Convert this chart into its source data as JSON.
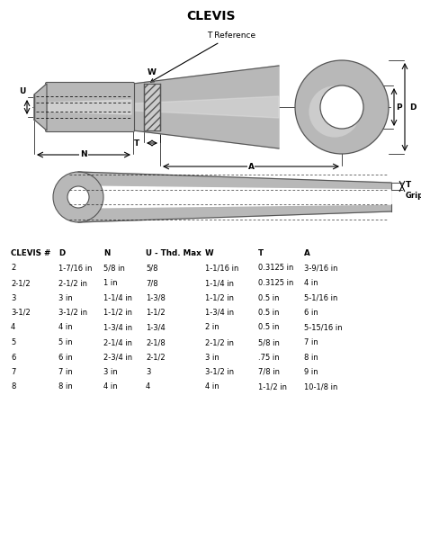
{
  "title": "CLEVIS",
  "bg_color": "#ffffff",
  "title_fontsize": 10,
  "table_header": [
    "CLEVIS #",
    "D",
    "N",
    "U - Thd. Max",
    "W",
    "T",
    "A"
  ],
  "table_rows": [
    [
      "2",
      "1-7/16 in",
      "5/8 in",
      "5/8",
      "1-1/16 in",
      "0.3125 in",
      "3-9/16 in"
    ],
    [
      "2-1/2",
      "2-1/2 in",
      "1 in",
      "7/8",
      "1-1/4 in",
      "0.3125 in",
      "4 in"
    ],
    [
      "3",
      "3 in",
      "1-1/4 in",
      "1-3/8",
      "1-1/2 in",
      "0.5 in",
      "5-1/16 in"
    ],
    [
      "3-1/2",
      "3-1/2 in",
      "1-1/2 in",
      "1-1/2",
      "1-3/4 in",
      "0.5 in",
      "6 in"
    ],
    [
      "4",
      "4 in",
      "1-3/4 in",
      "1-3/4",
      "2 in",
      "0.5 in",
      "5-15/16 in"
    ],
    [
      "5",
      "5 in",
      "2-1/4 in",
      "2-1/8",
      "2-1/2 in",
      "5/8 in",
      "7 in"
    ],
    [
      "6",
      "6 in",
      "2-3/4 in",
      "2-1/2",
      "3 in",
      ".75 in",
      "8 in"
    ],
    [
      "7",
      "7 in",
      "3 in",
      "3",
      "3-1/2 in",
      "7/8 in",
      "9 in"
    ],
    [
      "8",
      "8 in",
      "4 in",
      "4",
      "4 in",
      "1-1/2 in",
      "10-1/8 in"
    ]
  ],
  "gray_body": "#b8b8b8",
  "gray_dark": "#555555",
  "gray_mid": "#909090",
  "gray_light": "#d8d8d8",
  "gray_highlight": "#e0e0e0"
}
